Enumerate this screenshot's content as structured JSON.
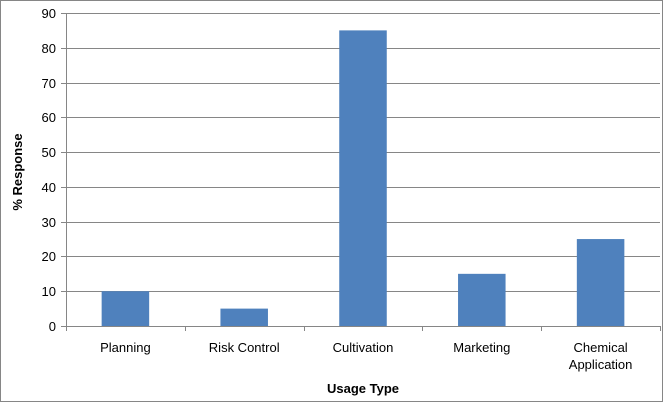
{
  "chart_data": {
    "type": "bar",
    "title": "",
    "xlabel": "Usage Type",
    "ylabel": "% Response",
    "categories": [
      [
        "Planning"
      ],
      [
        "Risk Control"
      ],
      [
        "Cultivation"
      ],
      [
        "Marketing"
      ],
      [
        "Chemical",
        "Application"
      ]
    ],
    "values": [
      10,
      5,
      85,
      15,
      25
    ],
    "ylim": [
      0,
      90
    ],
    "yticks": [
      0,
      10,
      20,
      30,
      40,
      50,
      60,
      70,
      80,
      90
    ],
    "grid": true,
    "legend": "none",
    "bar_color": "#4F81BD",
    "grid_color": "#868686"
  }
}
